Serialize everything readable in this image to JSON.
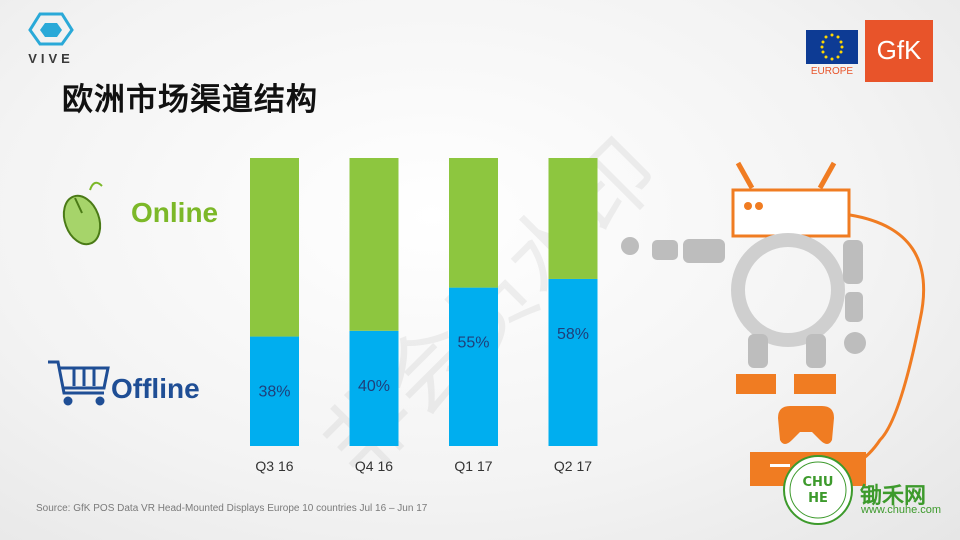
{
  "brand": {
    "vive": "VIVE",
    "gfk": "GfK",
    "europe": "EUROPE",
    "chuhe_name": "锄禾网",
    "chuhe_url": "www.chuhe.com"
  },
  "title": "欧洲市场渠道结构",
  "legend": {
    "online": "Online",
    "offline": "Offline"
  },
  "watermark": "非会员水印",
  "source": "Source: GfK POS Data VR Head-Mounted Displays Europe 10 countries Jul 16 – Jun 17",
  "colors": {
    "online": "#8dc63f",
    "offline": "#00aeef",
    "orange": "#f07c22",
    "eu_blue": "#0d3b94"
  },
  "icons": [
    "vive-logo-icon",
    "eu-flag-icon",
    "mouse-icon",
    "shopping-cart-icon",
    "robot-illustration",
    "chuhe-seal-icon"
  ],
  "chart_data": {
    "type": "bar",
    "stacked": true,
    "categories": [
      "Q3 16",
      "Q4 16",
      "Q1 17",
      "Q2 17"
    ],
    "series": [
      {
        "name": "Offline",
        "values": [
          38,
          40,
          55,
          58
        ]
      },
      {
        "name": "Online",
        "values": [
          62,
          60,
          45,
          42
        ]
      }
    ],
    "data_labels": [
      "38%",
      "40%",
      "55%",
      "58%"
    ],
    "ylim": [
      0,
      100
    ],
    "grid": false
  }
}
